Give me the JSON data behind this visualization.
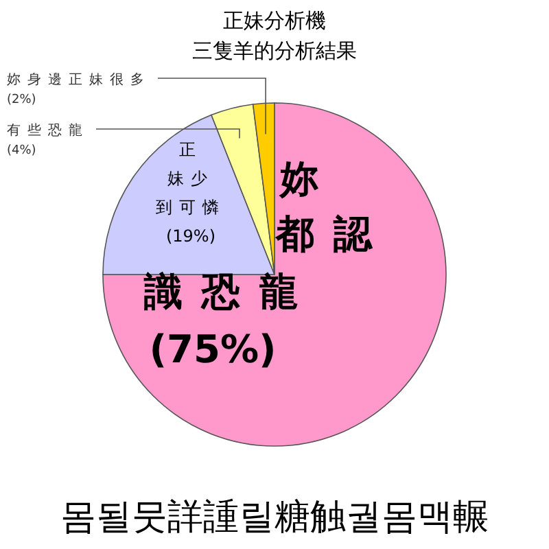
{
  "chart_data": {
    "type": "pie",
    "title": "正妹分析機",
    "subtitle": "三隻羊的分析結果",
    "categories": [
      "妳都認識恐龍",
      "正妹少到可憐",
      "有些恐龍",
      "妳身邊正妹很多"
    ],
    "values": [
      75,
      19,
      4,
      2
    ],
    "value_labels": [
      "(75%)",
      "(19%)",
      "(4%)",
      "(2%)"
    ],
    "colors": [
      "#ff99cc",
      "#ccccff",
      "#ffff99",
      "#ffcc00"
    ],
    "annotations": [
      "몸될뭇詳諥릴糖触궐몸맥輾"
    ]
  }
}
